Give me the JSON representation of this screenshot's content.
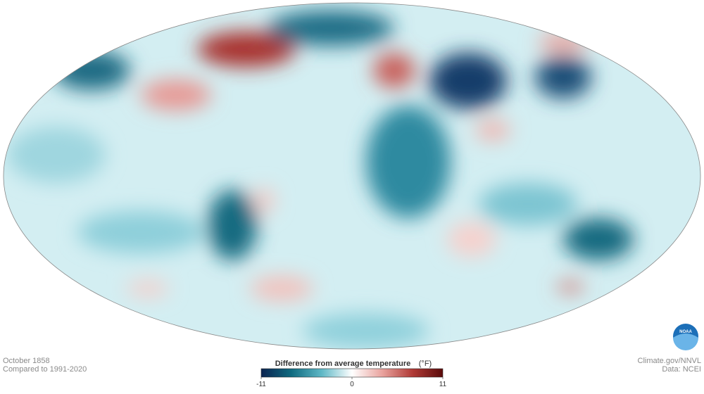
{
  "map": {
    "date": "October 1858",
    "baseline": "Compared to 1991-2020",
    "credit": "Climate.gov/NNVL",
    "source": "Data: NCEI",
    "logo": "NOAA"
  },
  "legend": {
    "title": "Difference from average temperature",
    "unit": "(°F)",
    "range": [
      -11,
      11
    ],
    "ticks": [
      -11,
      0,
      11
    ],
    "colors": [
      "#0b2350",
      "#0f6b80",
      "#5fb8c6",
      "#ffffff",
      "#e9a39e",
      "#b03a36",
      "#5a0a0a"
    ]
  }
}
